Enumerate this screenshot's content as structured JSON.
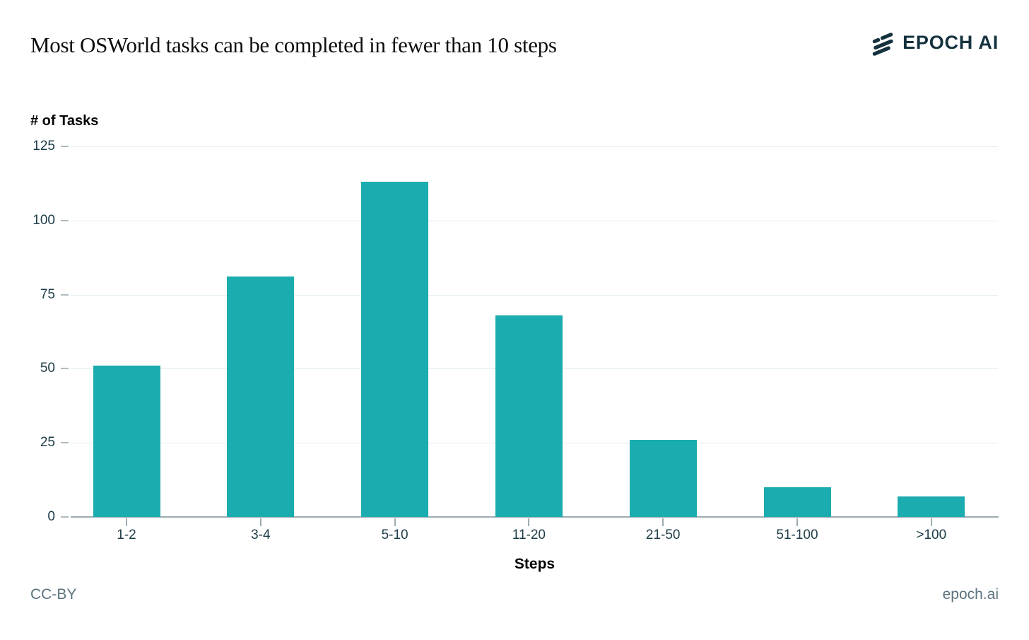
{
  "header": {
    "title": "Most OSWorld tasks can be completed in fewer than 10 steps",
    "logo_text": "EPOCH AI",
    "logo_icon": "epoch-slashes-icon"
  },
  "chart_data": {
    "type": "bar",
    "title": "Most OSWorld tasks can be completed in fewer than 10 steps",
    "categories": [
      "1-2",
      "3-4",
      "5-10",
      "11-20",
      "21-50",
      "51-100",
      ">100"
    ],
    "values": [
      51,
      81,
      113,
      68,
      26,
      10,
      7
    ],
    "xlabel": "Steps",
    "ylabel": "# of Tasks",
    "ylim": [
      0,
      125
    ],
    "yticks": [
      0,
      25,
      50,
      75,
      100,
      125
    ],
    "grid": true,
    "legend": "none",
    "bar_color": "#1bacaf"
  },
  "colors": {
    "bar": "#1bacaf",
    "gridline": "#e3edef",
    "axis_line": "#9dacb2",
    "tick_label": "#1e3c47",
    "title_text": "#0d0d0d",
    "logo_navy": "#15323e",
    "footer_text": "#5b737e",
    "background": "#ffffff"
  },
  "footer": {
    "license": "CC-BY",
    "site": "epoch.ai"
  }
}
